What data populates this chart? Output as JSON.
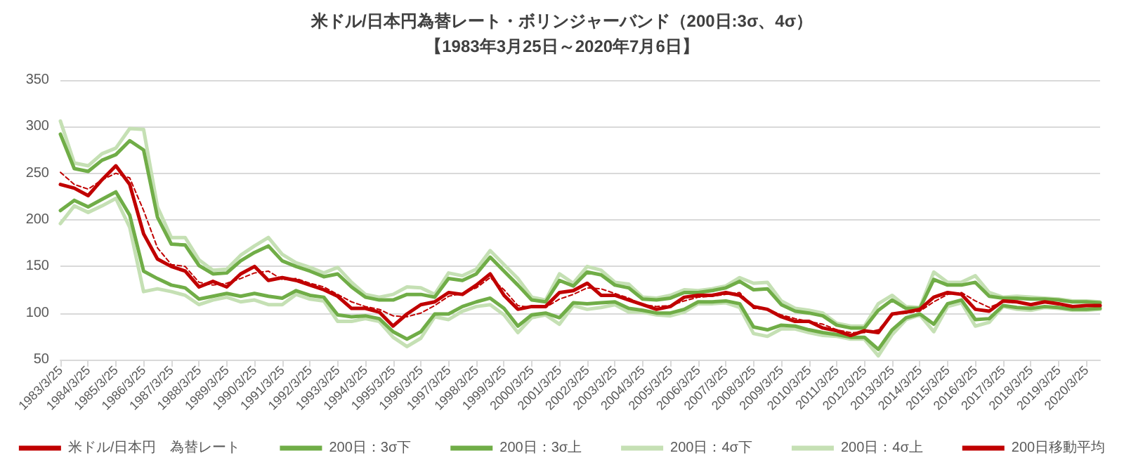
{
  "chart_data": {
    "type": "line",
    "title": "米ドル/日本円為替レート・ボリンジャーバンド（200日:3σ、4σ）",
    "subtitle": "【1983年3月25日～2020年7月6日】",
    "categories": [
      "1983/3/25",
      null,
      "1984/3/25",
      null,
      "1985/3/25",
      null,
      "1986/3/25",
      null,
      "1987/3/25",
      null,
      "1988/3/25",
      null,
      "1989/3/25",
      null,
      "1990/3/25",
      null,
      "1991/3/25",
      null,
      "1992/3/25",
      null,
      "1993/3/25",
      null,
      "1994/3/25",
      null,
      "1995/3/25",
      null,
      "1996/3/25",
      null,
      "1997/3/25",
      null,
      "1998/3/25",
      null,
      "1999/3/25",
      null,
      "2000/3/25",
      null,
      "2001/3/25",
      null,
      "2002/3/25",
      null,
      "2003/3/25",
      null,
      "2004/3/25",
      null,
      "2005/3/25",
      null,
      "2006/3/25",
      null,
      "2007/3/25",
      null,
      "2008/3/25",
      null,
      "2009/3/25",
      null,
      "2010/3/25",
      null,
      "2011/3/25",
      null,
      "2012/3/25",
      null,
      "2013/3/25",
      null,
      "2014/3/25",
      null,
      "2015/3/25",
      null,
      "2016/3/25",
      null,
      "2017/3/25",
      null,
      "2018/3/25",
      null,
      "2019/3/25",
      null,
      "2020/3/25",
      null
    ],
    "series": [
      {
        "name": "米ドル/日本円　為替レート",
        "color": "#c00000",
        "values": [
          238,
          234,
          226,
          243,
          258,
          238,
          185,
          158,
          150,
          145,
          128,
          134,
          128,
          142,
          150,
          135,
          138,
          135,
          130,
          125,
          118,
          105,
          105,
          101,
          86,
          99,
          109,
          112,
          122,
          120,
          130,
          142,
          119,
          104,
          107,
          107,
          122,
          124,
          132,
          119,
          119,
          114,
          109,
          104,
          107,
          117,
          119,
          119,
          122,
          119,
          107,
          104,
          96,
          91,
          91,
          84,
          81,
          76,
          81,
          79,
          99,
          101,
          104,
          117,
          122,
          120,
          104,
          102,
          113,
          112,
          109,
          112,
          110,
          107,
          108,
          108
        ]
      },
      {
        "name": "200日：3σ下",
        "color": "#70ad47",
        "values": [
          210,
          221,
          214,
          222,
          230,
          205,
          145,
          137,
          130,
          127,
          115,
          118,
          121,
          118,
          121,
          118,
          116,
          124,
          119,
          117,
          98,
          96,
          97,
          94,
          80,
          72,
          80,
          99,
          99,
          107,
          112,
          116,
          105,
          86,
          98,
          100,
          95,
          111,
          110,
          111,
          112,
          105,
          103,
          100,
          100,
          104,
          112,
          112,
          113,
          110,
          85,
          82,
          87,
          86,
          82,
          79,
          77,
          74,
          74,
          61,
          82,
          95,
          99,
          88,
          110,
          114,
          93,
          94,
          108,
          106,
          105,
          107,
          106,
          104,
          104,
          105
        ]
      },
      {
        "name": "200日：3σ上",
        "color": "#70ad47",
        "values": [
          292,
          255,
          252,
          264,
          270,
          285,
          275,
          203,
          174,
          173,
          151,
          142,
          143,
          156,
          165,
          172,
          156,
          150,
          145,
          139,
          142,
          128,
          117,
          114,
          114,
          120,
          120,
          117,
          137,
          135,
          142,
          160,
          145,
          130,
          114,
          112,
          135,
          129,
          144,
          141,
          130,
          127,
          115,
          114,
          116,
          122,
          122,
          124,
          127,
          134,
          125,
          126,
          109,
          102,
          100,
          97,
          87,
          84,
          84,
          103,
          114,
          105,
          105,
          136,
          130,
          130,
          133,
          118,
          116,
          116,
          115,
          115,
          114,
          112,
          112,
          111
        ]
      },
      {
        "name": "200日：4σ下",
        "color": "#c5e0b4",
        "values": [
          196,
          215,
          208,
          215,
          223,
          192,
          123,
          126,
          123,
          119,
          109,
          114,
          117,
          112,
          114,
          109,
          109,
          120,
          115,
          113,
          91,
          91,
          94,
          91,
          74,
          64,
          73,
          96,
          93,
          102,
          107,
          109,
          98,
          79,
          95,
          98,
          88,
          108,
          104,
          106,
          109,
          101,
          101,
          98,
          97,
          101,
          110,
          110,
          111,
          106,
          78,
          75,
          83,
          83,
          79,
          76,
          75,
          72,
          72,
          54,
          77,
          93,
          98,
          80,
          107,
          111,
          86,
          90,
          107,
          104,
          103,
          106,
          105,
          103,
          103,
          104
        ]
      },
      {
        "name": "200日：4σ上",
        "color": "#c5e0b4",
        "values": [
          306,
          261,
          258,
          271,
          277,
          298,
          297,
          214,
          181,
          181,
          157,
          146,
          147,
          162,
          172,
          181,
          163,
          154,
          149,
          143,
          149,
          133,
          120,
          117,
          120,
          128,
          127,
          120,
          143,
          140,
          147,
          167,
          152,
          137,
          117,
          114,
          142,
          132,
          150,
          146,
          133,
          131,
          117,
          116,
          119,
          125,
          124,
          126,
          129,
          138,
          132,
          133,
          113,
          105,
          103,
          100,
          89,
          86,
          86,
          110,
          119,
          107,
          106,
          144,
          133,
          133,
          140,
          122,
          117,
          118,
          117,
          116,
          115,
          113,
          113,
          112
        ]
      },
      {
        "name": "200日移動平均",
        "color": "#c00000",
        "line_style": "dashed",
        "values": [
          251,
          238,
          233,
          243,
          250,
          245,
          210,
          170,
          152,
          150,
          133,
          130,
          132,
          137,
          143,
          145,
          136,
          137,
          132,
          128,
          120,
          112,
          107,
          104,
          97,
          96,
          100,
          108,
          118,
          121,
          127,
          138,
          125,
          108,
          106,
          106,
          115,
          120,
          127,
          126,
          121,
          116,
          109,
          107,
          108,
          113,
          117,
          118,
          120,
          122,
          105,
          104,
          98,
          94,
          91,
          88,
          82,
          79,
          79,
          82,
          98,
          100,
          102,
          112,
          120,
          122,
          113,
          106,
          112,
          111,
          110,
          111,
          110,
          108,
          108,
          108
        ]
      }
    ],
    "ylim": [
      50,
      350
    ],
    "yticks": [
      50,
      100,
      150,
      200,
      250,
      300,
      350
    ],
    "grid": "y",
    "legend": "bottom",
    "marker": "none",
    "line_style": "solid"
  }
}
